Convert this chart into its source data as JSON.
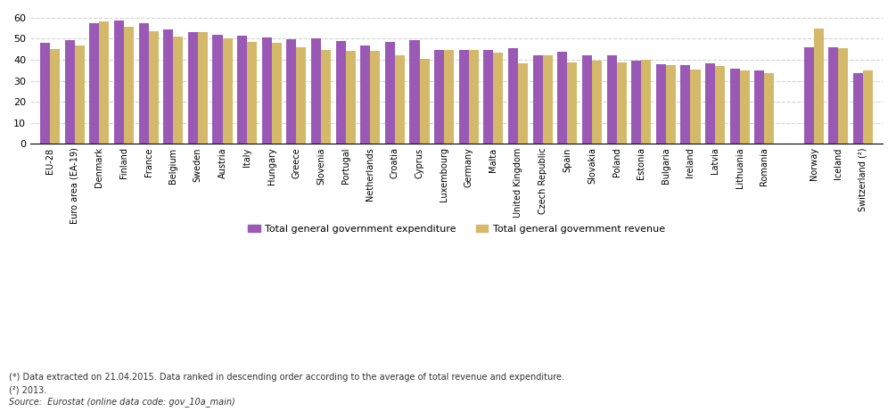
{
  "categories": [
    "EU-28",
    "Euro area (EA-19)",
    "Denmark",
    "Finland",
    "France",
    "Belgium",
    "Sweden",
    "Austria",
    "Italy",
    "Hungary",
    "Greece",
    "Slovenia",
    "Portugal",
    "Netherlands",
    "Croatia",
    "Cyprus",
    "Luxembourg",
    "Germany",
    "Malta",
    "United Kingdom",
    "Czech Republic",
    "Spain",
    "Slovakia",
    "Poland",
    "Estonia",
    "Bulgaria",
    "Ireland",
    "Latvia",
    "Lithuania",
    "Romania",
    "",
    "Norway",
    "Iceland",
    "Switzerland (²)"
  ],
  "expenditure": [
    48.1,
    49.3,
    57.2,
    58.8,
    57.3,
    54.5,
    53.3,
    52.0,
    51.2,
    50.5,
    49.7,
    50.1,
    49.0,
    46.7,
    48.5,
    49.1,
    44.8,
    44.7,
    44.7,
    45.3,
    42.2,
    43.9,
    41.9,
    42.2,
    39.7,
    38.0,
    37.5,
    38.3,
    35.9,
    34.8,
    null,
    45.8,
    45.8,
    33.7
  ],
  "revenue": [
    45.2,
    46.8,
    58.1,
    55.6,
    53.4,
    51.1,
    53.1,
    50.0,
    48.4,
    47.9,
    46.0,
    44.8,
    44.3,
    44.1,
    41.9,
    40.6,
    44.6,
    44.6,
    43.3,
    38.4,
    42.0,
    38.7,
    39.7,
    38.9,
    39.9,
    37.6,
    35.1,
    36.9,
    34.7,
    33.6,
    null,
    54.7,
    45.5,
    35.0
  ],
  "expenditure_color": "#9b59b6",
  "revenue_color": "#d4b96a",
  "ylim": [
    0,
    62
  ],
  "yticks": [
    0,
    10,
    20,
    30,
    40,
    50,
    60
  ],
  "legend_expenditure": "Total general government expenditure",
  "legend_revenue": "Total general government revenue",
  "footnote1": "(*) Data extracted on 21.04.2015. Data ranked in descending order according to the average of total revenue and expenditure.",
  "footnote2": "(²) 2013.",
  "source": "Source:  Eurostat (online data code: gov_10a_main)"
}
